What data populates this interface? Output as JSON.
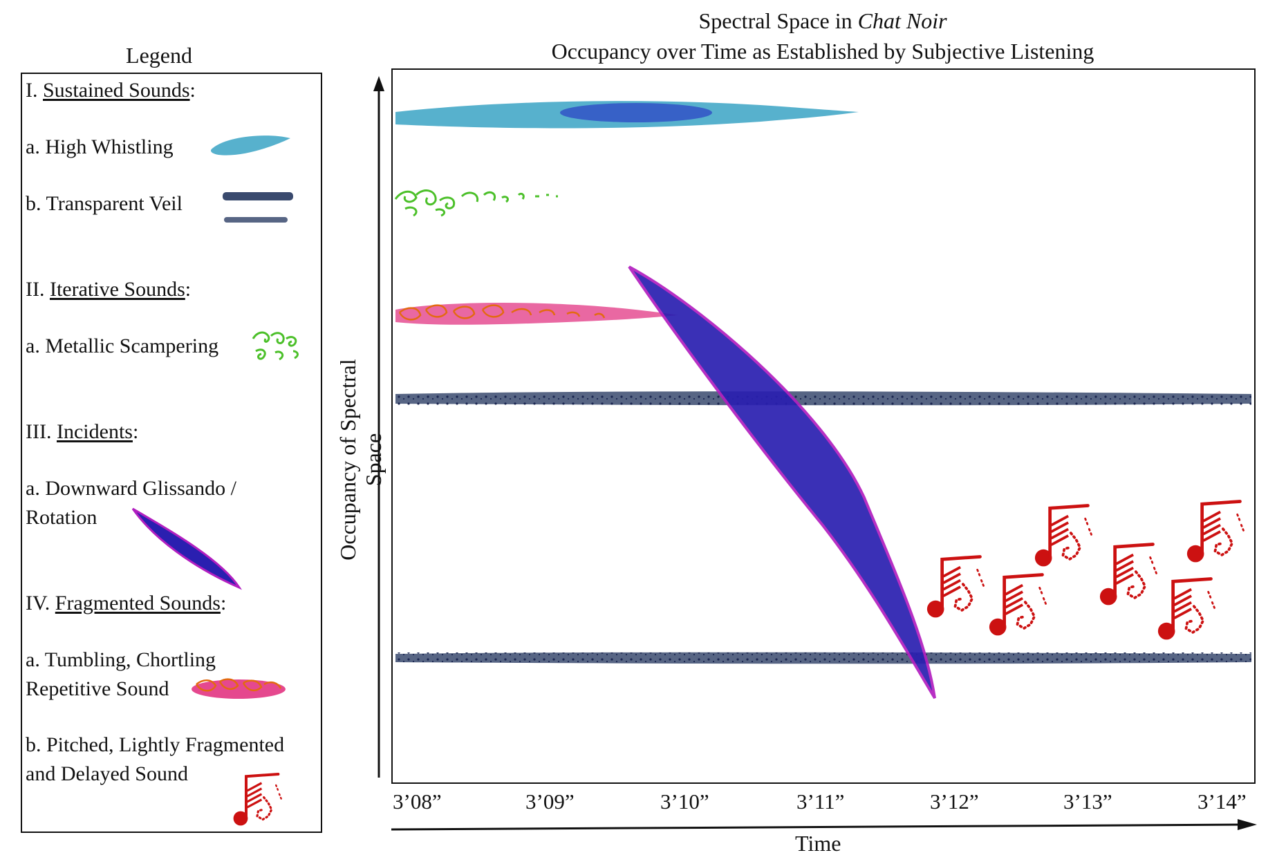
{
  "legend": {
    "title": "Legend",
    "cat1_num": "I. ",
    "cat1_name": "Sustained Sounds",
    "cat1_colon": ":",
    "item1a": "a. High Whistling",
    "item1b": "b. Transparent Veil",
    "cat2_num": "II. ",
    "cat2_name": "Iterative Sounds",
    "cat2_colon": ":",
    "item2a": "a. Metallic Scampering",
    "cat3_num": "III. ",
    "cat3_name": "Incidents",
    "cat3_colon": ":",
    "item3a_line1": "a. Downward Glissando /",
    "item3a_line2": "Rotation",
    "cat4_num": "IV. ",
    "cat4_name": "Fragmented Sounds",
    "cat4_colon": ":",
    "item4a_line1": "a. Tumbling, Chortling",
    "item4a_line2": "Repetitive Sound",
    "item4b_line1": "b. Pitched, Lightly Fragmented",
    "item4b_line2": "and Delayed Sound"
  },
  "chart": {
    "title_prefix": "Spectral Space in ",
    "title_italic": "Chat Noir",
    "subtitle": "Occupancy over Time as Established by Subjective Listening",
    "ylabel": "Occupancy of Spectral Space",
    "xlabel": "Time",
    "ticks": [
      "3’08”",
      "3’09”",
      "3’10”",
      "3’11”",
      "3’12”",
      "3’13”",
      "3’14”"
    ]
  },
  "colors": {
    "high_whistling": "#3aa3c4",
    "whistling_core": "#2a3fc4",
    "transparent_veil": "#3a4a6e",
    "metallic_scampering": "#4cc02a",
    "tumbling": "#e0287a",
    "glissando": "#2a1fb0",
    "glissando_edge": "#b21fc0",
    "pitched": "#cc1111"
  }
}
